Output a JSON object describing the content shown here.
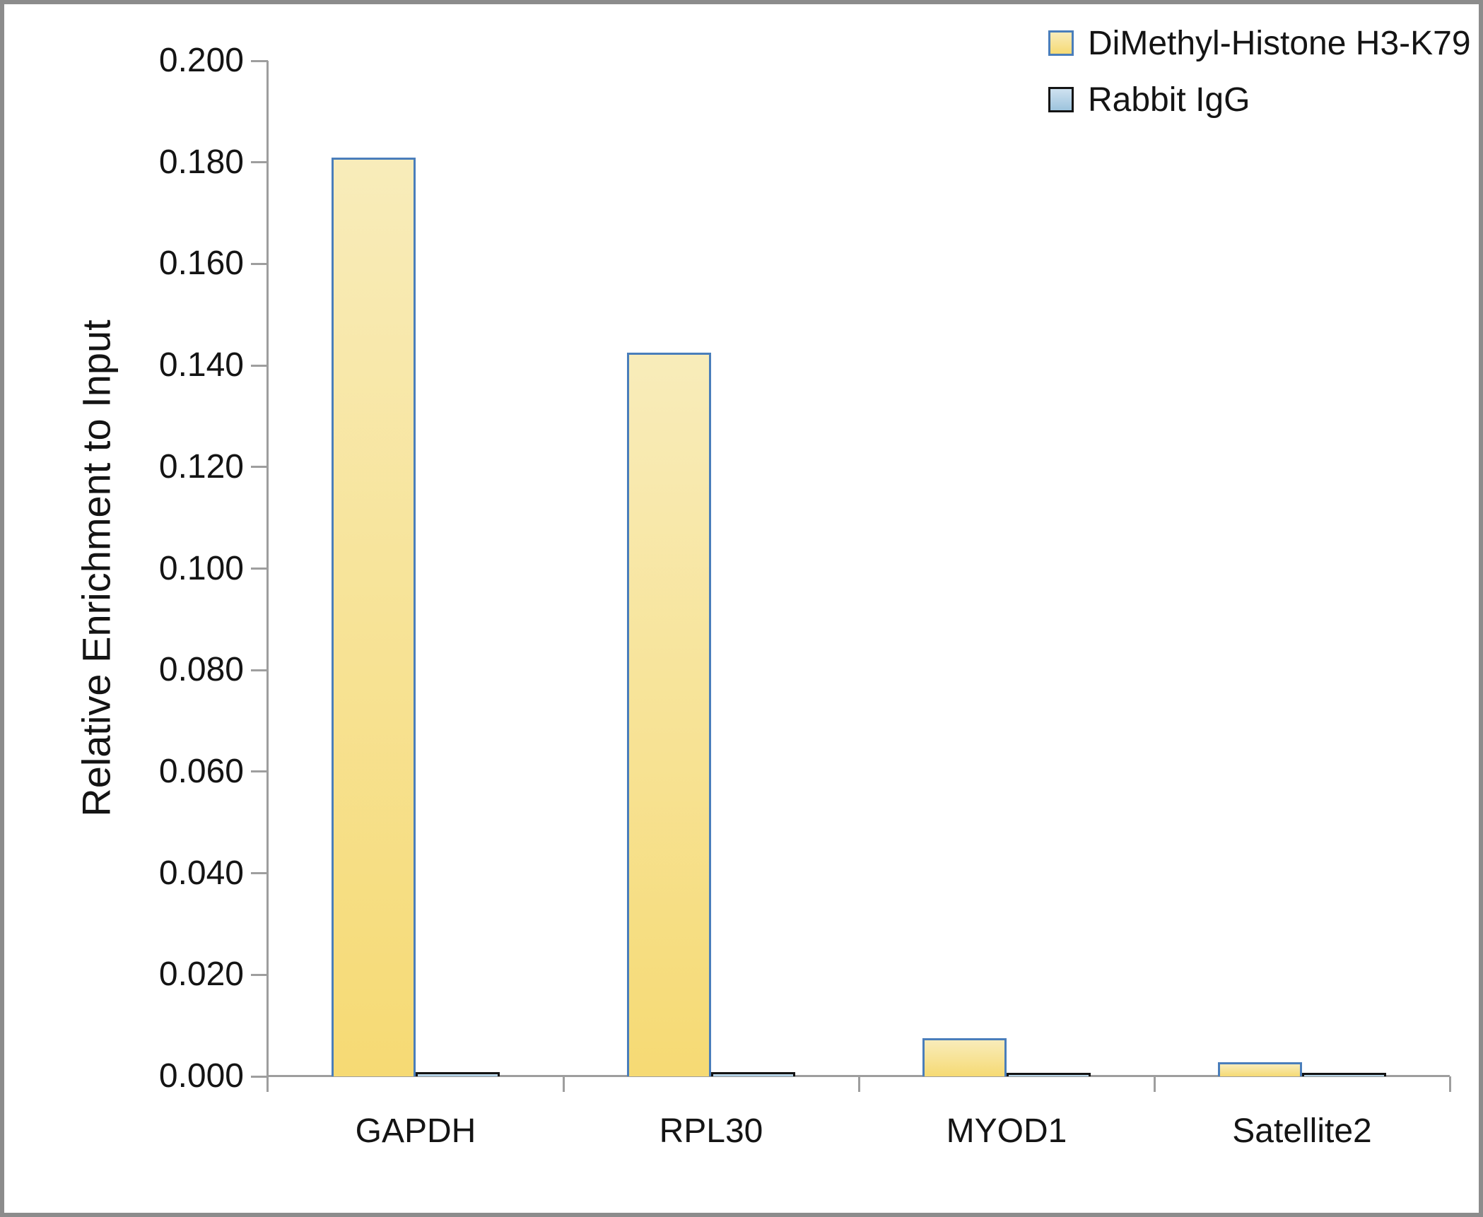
{
  "chart_data": {
    "type": "bar",
    "title": "",
    "categories": [
      "GAPDH",
      "RPL30",
      "MYOD1",
      "Satellite2"
    ],
    "series": [
      {
        "name": "DiMethyl-Histone H3-K79",
        "values": [
          0.181,
          0.1425,
          0.0075,
          0.0028
        ],
        "fill_top": "#F8ECBA",
        "fill_bottom": "#F6DA74",
        "border": "#4A7EBB"
      },
      {
        "name": "Rabbit IgG",
        "values": [
          0.0008,
          0.0008,
          0.0006,
          0.0005
        ],
        "fill_top": "#CFE2F0",
        "fill_bottom": "#9DC4DD",
        "border": "#141414"
      }
    ],
    "xlabel": "",
    "ylabel": "Relative Enrichment to Input",
    "ylim": [
      0,
      0.2
    ],
    "ytick_step": 0.02,
    "ytick_labels": [
      "0.000",
      "0.020",
      "0.040",
      "0.060",
      "0.080",
      "0.100",
      "0.120",
      "0.140",
      "0.160",
      "0.180",
      "0.200"
    ],
    "grid": false,
    "legend_position": "top-right"
  },
  "colors": {
    "frame": "#8C8C8C",
    "axis": "#9E9E9E",
    "text": "#141414",
    "background": "#FFFFFF"
  }
}
